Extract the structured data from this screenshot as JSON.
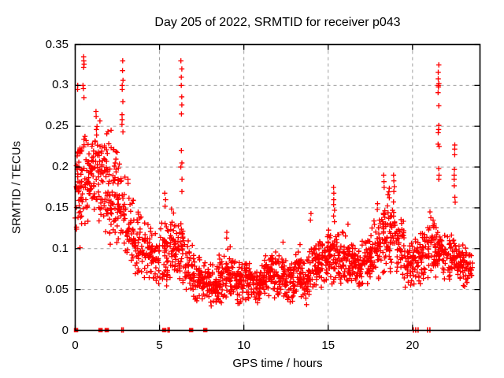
{
  "window": {
    "background": "#ffffff",
    "text_color": "#000000"
  },
  "chart_data": {
    "type": "scatter",
    "title": "Day 205 of 2022, SRMTID for receiver p043",
    "xlabel": "GPS time / hours",
    "ylabel": "SRMTID / TECUs",
    "xlim": [
      0,
      24
    ],
    "ylim": [
      0,
      0.35
    ],
    "xticks": {
      "values": [
        0,
        5,
        10,
        15,
        20
      ],
      "labels": [
        "0",
        "5",
        "10",
        "15",
        "20"
      ]
    },
    "yticks": {
      "values": [
        0,
        0.05,
        0.1,
        0.15,
        0.2,
        0.25,
        0.3,
        0.35
      ],
      "labels": [
        "0",
        "0.05",
        "0.1",
        "0.15",
        "0.2",
        "0.25",
        "0.3",
        "0.35"
      ]
    },
    "grid": true,
    "legend": false,
    "marker": {
      "glyph": "plus",
      "color": "#ff0000",
      "size": 7
    },
    "grid_color": "#a0a0a0",
    "axis_color": "#000000",
    "cloud_bin_format": [
      "x_start_hours",
      "x_width_hours",
      "point_count",
      "y_min_TECUs",
      "y_max_TECUs"
    ],
    "cloud_bins": [
      [
        0.0,
        0.5,
        55,
        0.095,
        0.255
      ],
      [
        0.5,
        0.5,
        50,
        0.12,
        0.26
      ],
      [
        1.0,
        0.5,
        50,
        0.125,
        0.265
      ],
      [
        1.5,
        0.5,
        50,
        0.115,
        0.25
      ],
      [
        2.0,
        0.5,
        46,
        0.1,
        0.23
      ],
      [
        2.5,
        0.5,
        44,
        0.09,
        0.21
      ],
      [
        3.0,
        0.5,
        40,
        0.07,
        0.17
      ],
      [
        3.5,
        0.5,
        38,
        0.055,
        0.15
      ],
      [
        4.0,
        0.5,
        36,
        0.05,
        0.14
      ],
      [
        4.5,
        0.5,
        38,
        0.04,
        0.125
      ],
      [
        5.0,
        0.5,
        40,
        0.045,
        0.14
      ],
      [
        5.5,
        0.5,
        42,
        0.055,
        0.15
      ],
      [
        6.0,
        0.5,
        40,
        0.05,
        0.15
      ],
      [
        6.5,
        0.5,
        38,
        0.04,
        0.125
      ],
      [
        7.0,
        0.5,
        40,
        0.033,
        0.1
      ],
      [
        7.5,
        0.5,
        42,
        0.028,
        0.085
      ],
      [
        8.0,
        0.5,
        44,
        0.028,
        0.082
      ],
      [
        8.5,
        0.5,
        44,
        0.03,
        0.1
      ],
      [
        9.0,
        0.5,
        44,
        0.033,
        0.11
      ],
      [
        9.5,
        0.5,
        44,
        0.03,
        0.09
      ],
      [
        10.0,
        0.5,
        44,
        0.034,
        0.09
      ],
      [
        10.5,
        0.5,
        44,
        0.03,
        0.085
      ],
      [
        11.0,
        0.5,
        44,
        0.034,
        0.095
      ],
      [
        11.5,
        0.5,
        44,
        0.038,
        0.105
      ],
      [
        12.0,
        0.5,
        44,
        0.034,
        0.1
      ],
      [
        12.5,
        0.5,
        44,
        0.027,
        0.088
      ],
      [
        13.0,
        0.5,
        44,
        0.036,
        0.105
      ],
      [
        13.5,
        0.5,
        44,
        0.026,
        0.1
      ],
      [
        14.0,
        0.5,
        44,
        0.036,
        0.13
      ],
      [
        14.5,
        0.5,
        46,
        0.045,
        0.12
      ],
      [
        15.0,
        0.5,
        44,
        0.05,
        0.13
      ],
      [
        15.5,
        0.5,
        44,
        0.05,
        0.125
      ],
      [
        16.0,
        0.5,
        44,
        0.05,
        0.12
      ],
      [
        16.5,
        0.5,
        44,
        0.047,
        0.11
      ],
      [
        17.0,
        0.5,
        44,
        0.05,
        0.12
      ],
      [
        17.5,
        0.5,
        44,
        0.055,
        0.14
      ],
      [
        18.0,
        0.5,
        44,
        0.065,
        0.165
      ],
      [
        18.5,
        0.5,
        46,
        0.07,
        0.185
      ],
      [
        19.0,
        0.5,
        42,
        0.06,
        0.155
      ],
      [
        19.5,
        0.5,
        40,
        0.048,
        0.115
      ],
      [
        20.0,
        0.5,
        40,
        0.05,
        0.125
      ],
      [
        20.5,
        0.5,
        40,
        0.055,
        0.135
      ],
      [
        21.0,
        0.5,
        40,
        0.055,
        0.145
      ],
      [
        21.5,
        0.5,
        40,
        0.06,
        0.13
      ],
      [
        22.0,
        0.5,
        40,
        0.055,
        0.125
      ],
      [
        22.5,
        0.5,
        40,
        0.05,
        0.115
      ],
      [
        23.0,
        0.55,
        40,
        0.046,
        0.105
      ]
    ],
    "spike_columns": [
      {
        "x": 0.15,
        "ys": [
          0.3,
          0.295
        ]
      },
      {
        "x": 0.5,
        "ys": [
          0.335,
          0.33,
          0.326,
          0.322,
          0.3,
          0.296,
          0.285
        ]
      },
      {
        "x": 1.25,
        "ys": [
          0.268,
          0.262
        ]
      },
      {
        "x": 2.1,
        "ys": [
          0.245
        ]
      },
      {
        "x": 2.8,
        "ys": [
          0.33,
          0.318,
          0.306,
          0.3,
          0.295,
          0.28,
          0.264,
          0.258,
          0.252,
          0.243
        ]
      },
      {
        "x": 3.1,
        "ys": [
          0.185,
          0.18
        ]
      },
      {
        "x": 5.35,
        "ys": [
          0.168,
          0.16,
          0.152
        ]
      },
      {
        "x": 6.3,
        "ys": [
          0.33,
          0.32,
          0.31,
          0.3,
          0.286,
          0.276,
          0.265,
          0.22,
          0.205,
          0.2,
          0.185,
          0.17
        ]
      },
      {
        "x": 9.0,
        "ys": [
          0.12,
          0.113
        ]
      },
      {
        "x": 12.35,
        "ys": [
          0.108
        ]
      },
      {
        "x": 13.3,
        "ys": [
          0.105
        ]
      },
      {
        "x": 13.95,
        "ys": [
          0.143,
          0.135
        ]
      },
      {
        "x": 15.35,
        "ys": [
          0.175,
          0.168,
          0.16,
          0.154,
          0.147,
          0.14,
          0.133
        ]
      },
      {
        "x": 16.2,
        "ys": [
          0.13
        ]
      },
      {
        "x": 17.9,
        "ys": [
          0.155,
          0.148
        ]
      },
      {
        "x": 18.3,
        "ys": [
          0.19,
          0.182,
          0.175
        ]
      },
      {
        "x": 18.9,
        "ys": [
          0.19,
          0.183,
          0.176,
          0.17
        ]
      },
      {
        "x": 21.05,
        "ys": [
          0.145,
          0.138
        ]
      },
      {
        "x": 21.55,
        "ys": [
          0.325,
          0.316,
          0.308,
          0.302,
          0.3,
          0.298,
          0.291,
          0.275,
          0.251,
          0.246,
          0.242,
          0.228,
          0.225,
          0.198,
          0.19,
          0.185
        ]
      },
      {
        "x": 22.5,
        "ys": [
          0.227,
          0.222,
          0.215,
          0.197,
          0.19,
          0.185,
          0.177,
          0.163,
          0.157
        ]
      }
    ],
    "zero_value_marks": [
      {
        "x": 0.05,
        "y": 0,
        "style": "square"
      },
      {
        "x": 1.5,
        "y": 0,
        "style": "square"
      },
      {
        "x": 1.87,
        "y": 0,
        "style": "square"
      },
      {
        "x": 2.76,
        "y": 0,
        "style": "bar"
      },
      {
        "x": 2.85,
        "y": 0,
        "style": "bar"
      },
      {
        "x": 5.28,
        "y": 0,
        "style": "square"
      },
      {
        "x": 5.5,
        "y": 0,
        "style": "bar"
      },
      {
        "x": 5.58,
        "y": 0,
        "style": "bar"
      },
      {
        "x": 6.87,
        "y": 0,
        "style": "square"
      },
      {
        "x": 7.71,
        "y": 0,
        "style": "square"
      },
      {
        "x": 20.05,
        "y": 0,
        "style": "bar"
      },
      {
        "x": 20.19,
        "y": 0,
        "style": "bar"
      },
      {
        "x": 20.33,
        "y": 0,
        "style": "bar"
      },
      {
        "x": 20.89,
        "y": 0,
        "style": "bar"
      },
      {
        "x": 21.03,
        "y": 0,
        "style": "bar"
      }
    ]
  }
}
